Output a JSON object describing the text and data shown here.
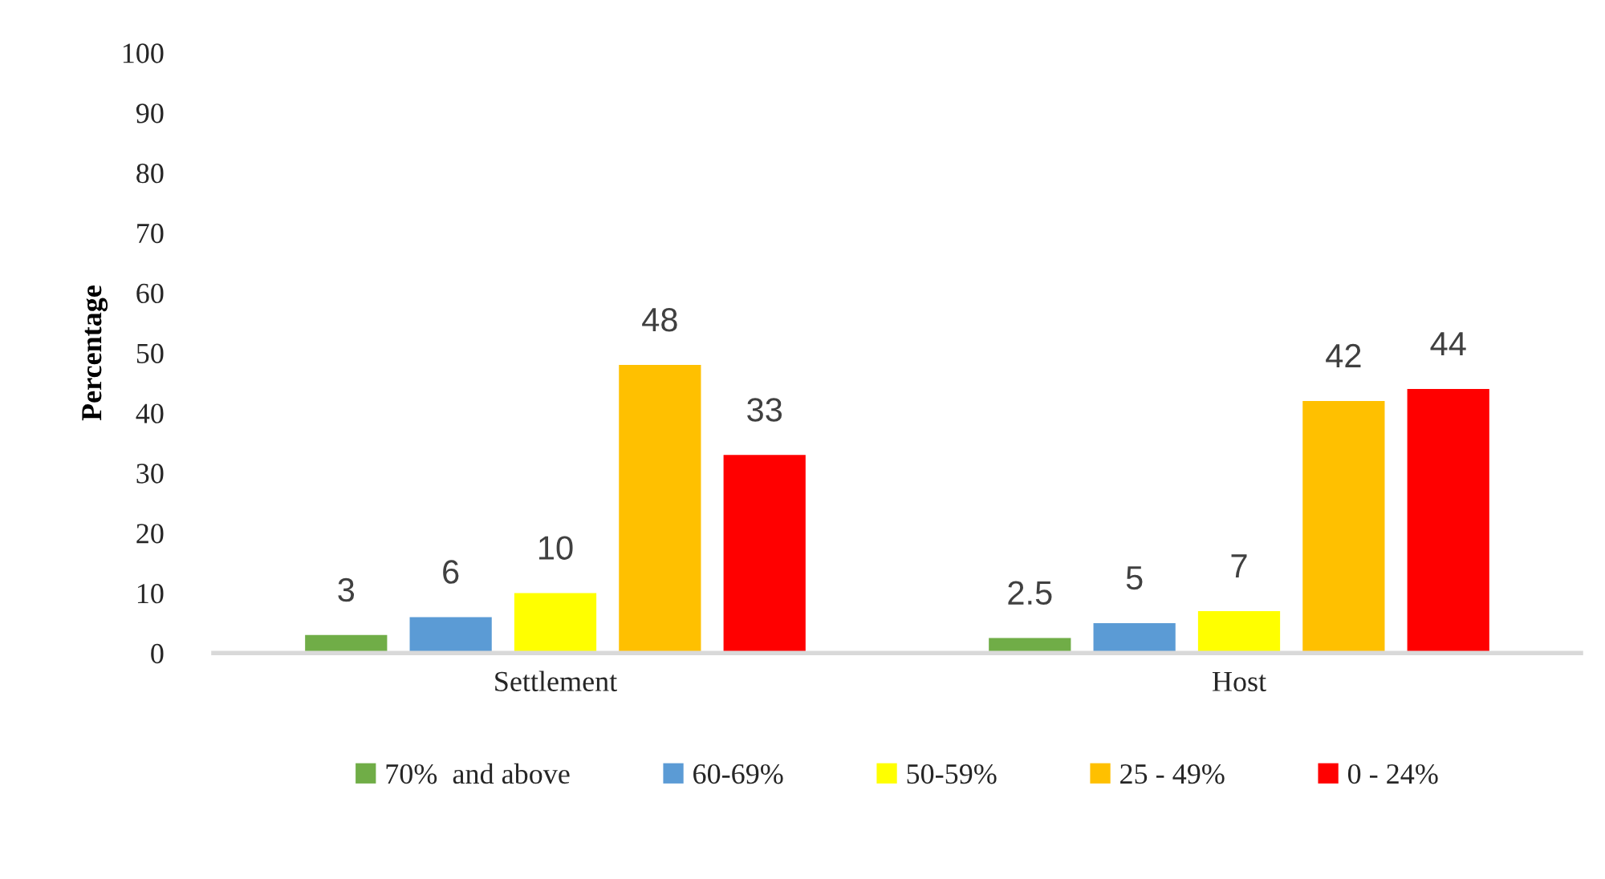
{
  "chart_data": {
    "type": "bar",
    "ylabel": "Percentage",
    "categories": [
      "Settlement",
      "Host"
    ],
    "series": [
      {
        "name": "70%  and above",
        "color": "#70ad47",
        "values": [
          3,
          2.5
        ]
      },
      {
        "name": "60-69%",
        "color": "#5b9bd5",
        "values": [
          6,
          5
        ]
      },
      {
        "name": "50-59%",
        "color": "#ffff00",
        "values": [
          10,
          7
        ]
      },
      {
        "name": "25 - 49%",
        "color": "#ffc000",
        "values": [
          48,
          42
        ]
      },
      {
        "name": "0 - 24%",
        "color": "#ff0000",
        "values": [
          33,
          44
        ]
      }
    ],
    "ylim": [
      0,
      100
    ],
    "yticks": [
      0,
      10,
      20,
      30,
      40,
      50,
      60,
      70,
      80,
      90,
      100
    ],
    "data_labels": true,
    "grid": false,
    "legend": "bottom"
  }
}
